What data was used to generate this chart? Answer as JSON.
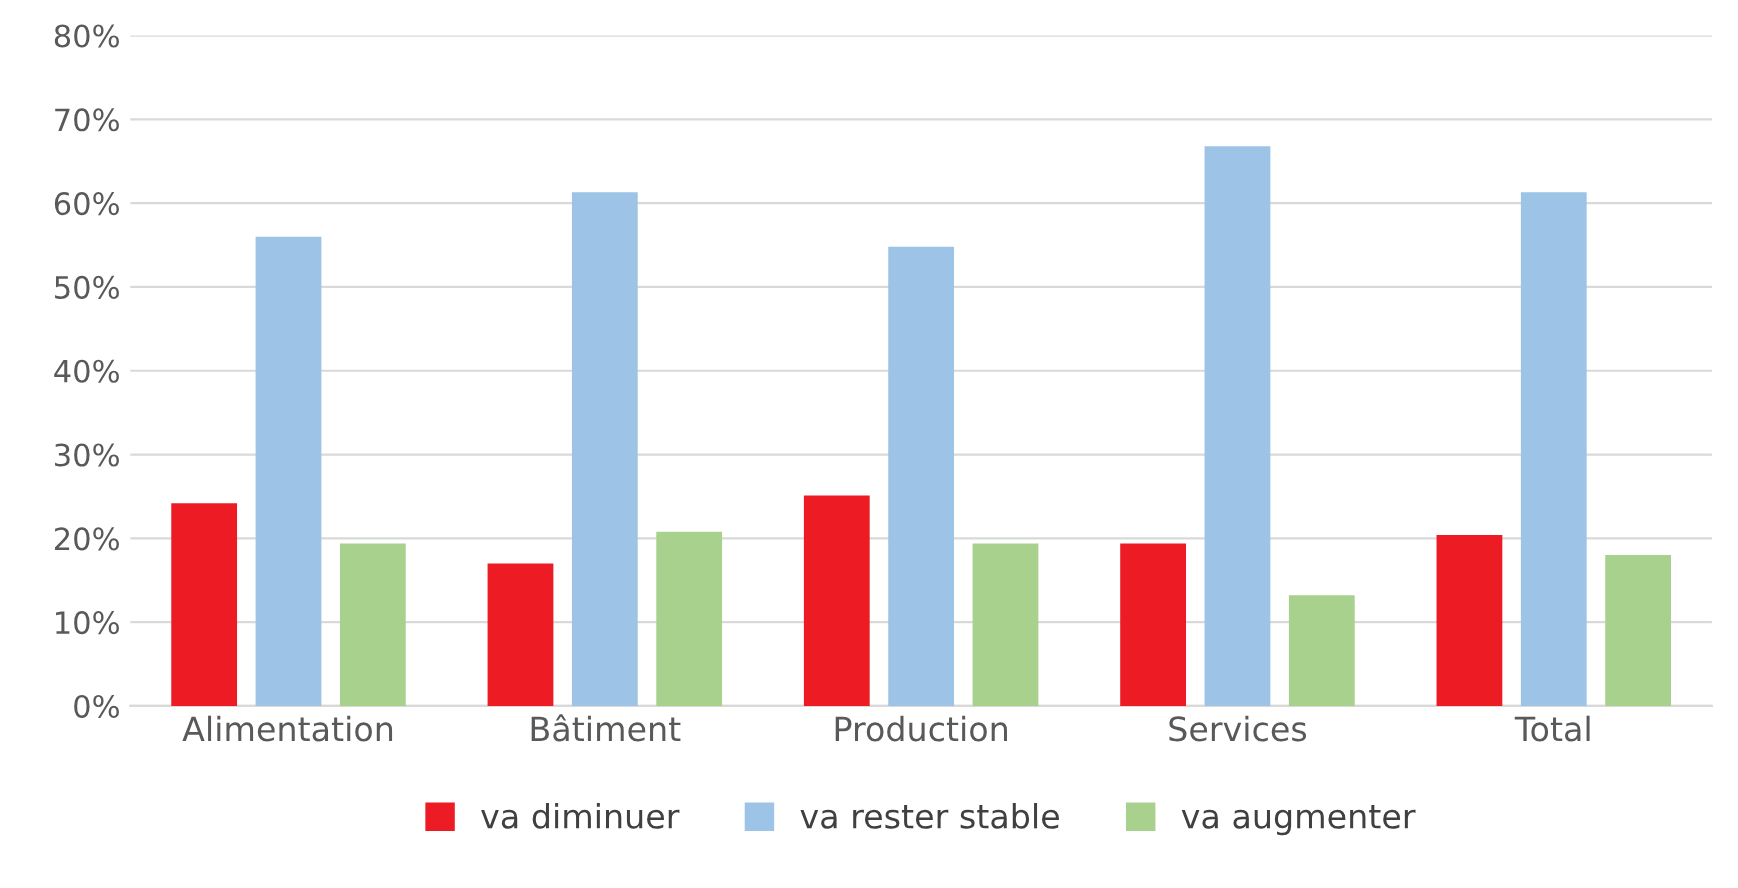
{
  "chart_data": {
    "type": "bar",
    "categories": [
      "Alimentation",
      "Bâtiment",
      "Production",
      "Services",
      "Total"
    ],
    "series": [
      {
        "name": "va diminuer",
        "color": "#ed1c24",
        "values": [
          24.2,
          17.0,
          25.1,
          19.4,
          20.4
        ]
      },
      {
        "name": "va rester stable",
        "color": "#9dc3e6",
        "values": [
          56.0,
          61.3,
          54.8,
          66.8,
          61.3
        ]
      },
      {
        "name": "va augmenter",
        "color": "#a9d18e",
        "values": [
          19.4,
          20.8,
          19.4,
          13.2,
          18.0
        ]
      }
    ],
    "ylim": [
      0,
      80
    ],
    "yticks": [
      {
        "value": 0,
        "label": "0%"
      },
      {
        "value": 10,
        "label": "10%"
      },
      {
        "value": 20,
        "label": "20%"
      },
      {
        "value": 30,
        "label": "30%"
      },
      {
        "value": 40,
        "label": "40%"
      },
      {
        "value": 50,
        "label": "50%"
      },
      {
        "value": 60,
        "label": "60%"
      },
      {
        "value": 70,
        "label": "70%"
      },
      {
        "value": 80,
        "label": "80%"
      }
    ],
    "grid": "y",
    "legend": "bottom"
  }
}
